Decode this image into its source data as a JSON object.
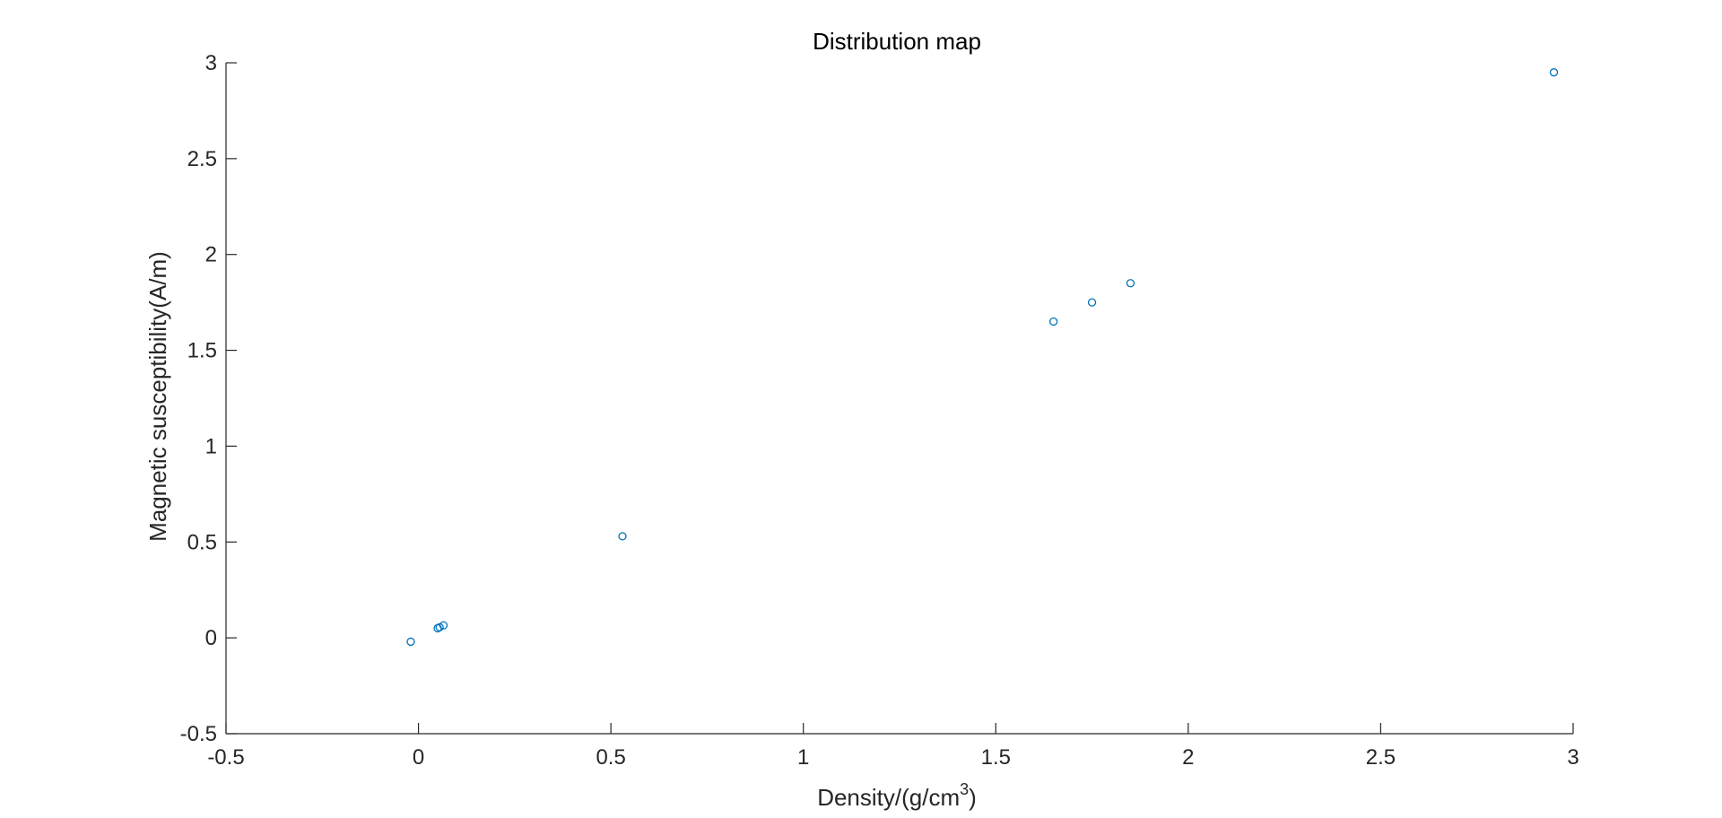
{
  "chart_data": {
    "type": "scatter",
    "title": "Distribution map",
    "xlabel": {
      "main": "Density/(g/cm",
      "superscript": "3",
      "close": ")"
    },
    "ylabel": "Magnetic susceptibility(A/m)",
    "xlim": [
      -0.5,
      3
    ],
    "ylim": [
      -0.5,
      3
    ],
    "xticks": [
      -0.5,
      0,
      0.5,
      1,
      1.5,
      2,
      2.5,
      3
    ],
    "yticks": [
      -0.5,
      0,
      0.5,
      1,
      1.5,
      2,
      2.5,
      3
    ],
    "xtick_labels": [
      "-0.5",
      "0",
      "0.5",
      "1",
      "1.5",
      "2",
      "2.5",
      "3"
    ],
    "ytick_labels": [
      "-0.5",
      "0",
      "0.5",
      "1",
      "1.5",
      "2",
      "2.5",
      "3"
    ],
    "grid": false,
    "box": false,
    "marker": "circle-open",
    "color": "#0072BD",
    "series": [
      {
        "x": [
          -0.02,
          0.05,
          0.055,
          0.065,
          0.53,
          1.65,
          1.75,
          1.85,
          2.95
        ],
        "y": [
          -0.02,
          0.05,
          0.055,
          0.065,
          0.53,
          1.65,
          1.75,
          1.85,
          2.95
        ]
      }
    ]
  }
}
